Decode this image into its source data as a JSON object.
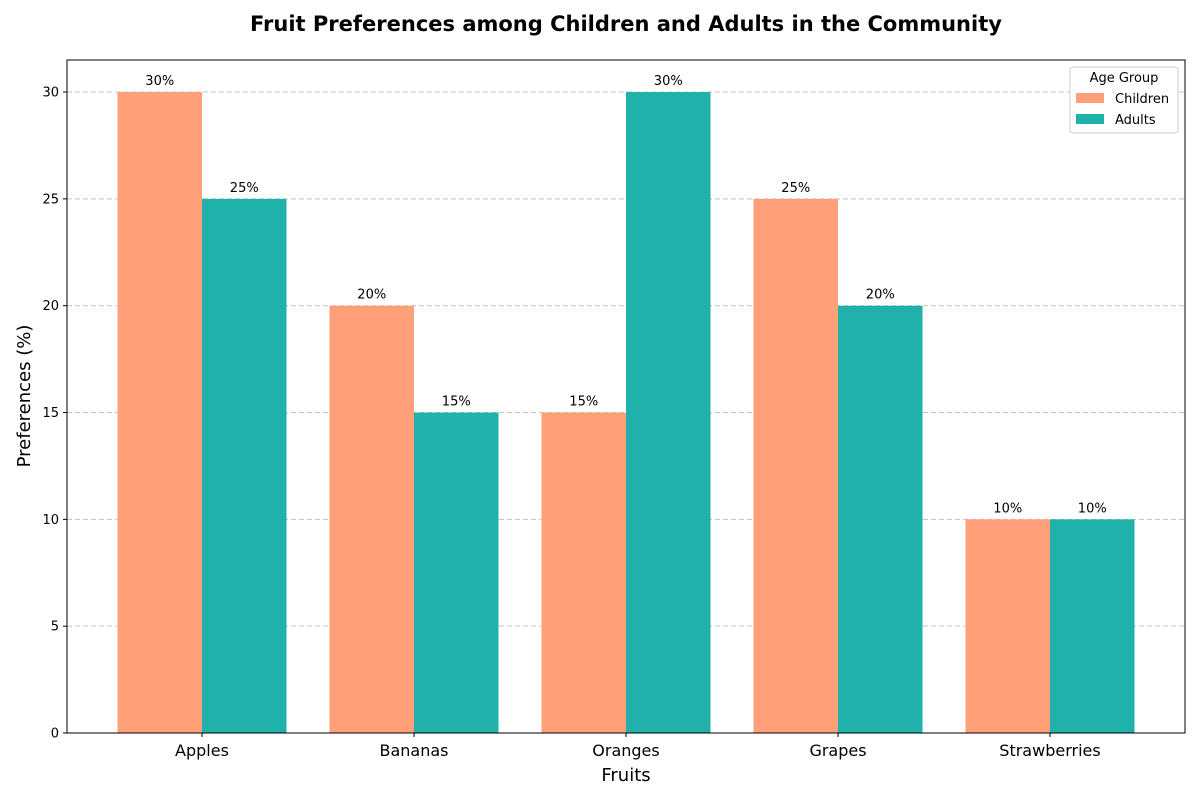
{
  "chart_data": {
    "type": "bar",
    "title": "Fruit Preferences among Children and Adults in the Community",
    "xlabel": "Fruits",
    "ylabel": "Preferences (%)",
    "categories": [
      "Apples",
      "Bananas",
      "Oranges",
      "Grapes",
      "Strawberries"
    ],
    "series": [
      {
        "name": "Children",
        "values": [
          30,
          20,
          15,
          25,
          10
        ],
        "color": "#FFA07A"
      },
      {
        "name": "Adults",
        "values": [
          25,
          15,
          30,
          20,
          10
        ],
        "color": "#20B2AA"
      }
    ],
    "value_suffix": "%",
    "ylim": [
      0,
      31.5
    ],
    "yticks": [
      0,
      5,
      10,
      15,
      20,
      25,
      30
    ],
    "grid": "y-dashed",
    "legend": {
      "title": "Age Group",
      "placement": "top-right"
    }
  }
}
